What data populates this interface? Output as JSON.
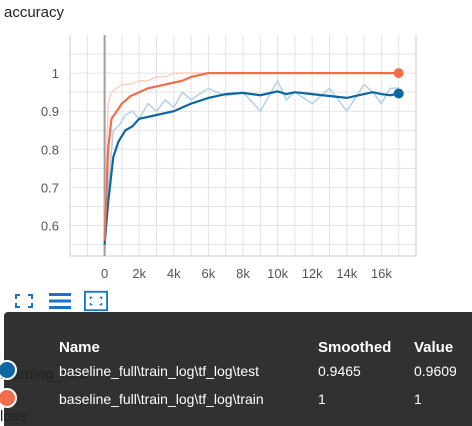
{
  "chart_data": {
    "type": "line",
    "title": "accuracy",
    "xlabel": "",
    "ylabel": "",
    "x_tick_labels": [
      "0",
      "2k",
      "4k",
      "6k",
      "8k",
      "10k",
      "12k",
      "14k",
      "16k"
    ],
    "y_tick_labels": [
      "0.6",
      "0.7",
      "0.8",
      "0.9",
      "1"
    ],
    "xlim": [
      -2000,
      18000
    ],
    "ylim": [
      0.52,
      1.1
    ],
    "grid": true,
    "series": [
      {
        "name": "baseline_full\\train_log\\tf_log\\test",
        "color": "#0a67a3",
        "raw_color": "#b5cfe6",
        "x": [
          0,
          200,
          500,
          800,
          1200,
          1600,
          2000,
          2500,
          3000,
          3500,
          4000,
          4500,
          5000,
          6000,
          7000,
          8000,
          9000,
          10000,
          10500,
          11000,
          12000,
          13000,
          14000,
          15000,
          15500,
          16000,
          16500,
          17000
        ],
        "smoothed": [
          0.55,
          0.66,
          0.78,
          0.82,
          0.85,
          0.86,
          0.88,
          0.885,
          0.89,
          0.895,
          0.9,
          0.91,
          0.92,
          0.935,
          0.945,
          0.948,
          0.942,
          0.952,
          0.945,
          0.95,
          0.945,
          0.94,
          0.935,
          0.945,
          0.95,
          0.945,
          0.942,
          0.9465
        ],
        "values": [
          0.56,
          0.7,
          0.85,
          0.86,
          0.89,
          0.9,
          0.88,
          0.92,
          0.9,
          0.93,
          0.91,
          0.95,
          0.93,
          0.96,
          0.94,
          0.95,
          0.9,
          0.98,
          0.93,
          0.95,
          0.92,
          0.96,
          0.9,
          0.97,
          0.95,
          0.92,
          0.96,
          0.9609
        ],
        "smoothed_value": "0.9465",
        "value": "0.9609"
      },
      {
        "name": "baseline_full\\train_log\\tf_log\\train",
        "color": "#f26d4b",
        "raw_color": "#fbcfbf",
        "x": [
          0,
          200,
          400,
          700,
          1000,
          1500,
          2000,
          2500,
          3000,
          3500,
          4000,
          4500,
          5000,
          5500,
          6000,
          7000,
          8000,
          10000,
          12000,
          14000,
          16000,
          17000
        ],
        "smoothed": [
          0.56,
          0.8,
          0.88,
          0.9,
          0.92,
          0.94,
          0.95,
          0.96,
          0.965,
          0.97,
          0.975,
          0.98,
          0.99,
          0.995,
          1.0,
          1.0,
          1.0,
          1.0,
          1.0,
          1.0,
          1.0,
          1.0
        ],
        "values": [
          0.58,
          0.92,
          0.95,
          0.96,
          0.97,
          0.97,
          0.98,
          0.98,
          0.99,
          0.99,
          1.0,
          1.0,
          1.0,
          1.0,
          1.0,
          1.0,
          1.0,
          1.0,
          1.0,
          1.0,
          1.0,
          1.0
        ],
        "smoothed_value": "1",
        "value": "1"
      }
    ]
  },
  "tooltip": {
    "col_name": "Name",
    "col_smoothed": "Smoothed",
    "col_value": "Value"
  },
  "toolbar": {
    "icons": [
      "expand-icon",
      "list-icon",
      "fit-domain-icon"
    ]
  },
  "below_labels": {
    "learning_rate": "learning_rate",
    "loss": "loss"
  }
}
